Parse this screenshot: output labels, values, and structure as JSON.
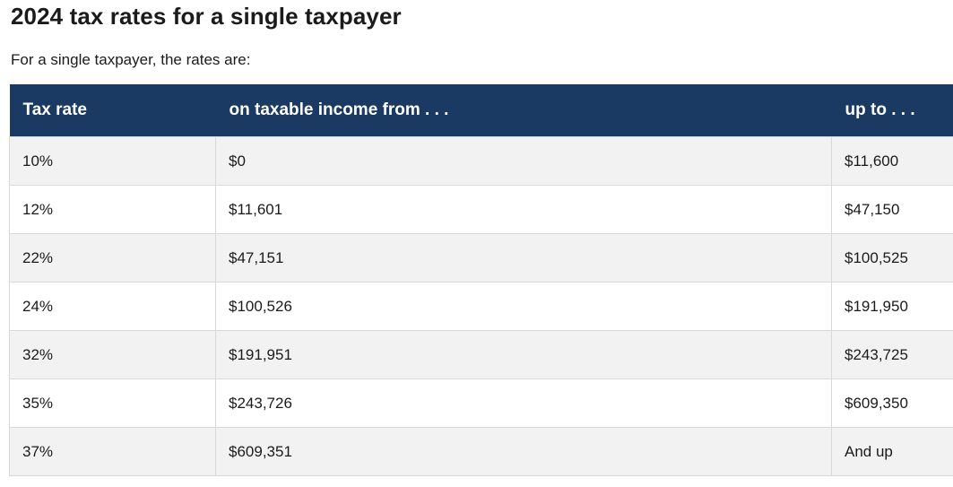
{
  "page": {
    "title": "2024 tax rates for a single taxpayer",
    "subtitle": "For a single taxpayer, the rates are:"
  },
  "table": {
    "columns": [
      "Tax rate",
      "on taxable income from . . .",
      "up to . . ."
    ],
    "rows": [
      {
        "rate": "10%",
        "from": "$0",
        "upto": "$11,600"
      },
      {
        "rate": "12%",
        "from": "$11,601",
        "upto": "$47,150"
      },
      {
        "rate": "22%",
        "from": "$47,151",
        "upto": "$100,525"
      },
      {
        "rate": "24%",
        "from": "$100,526",
        "upto": "$191,950"
      },
      {
        "rate": "32%",
        "from": "$191,951",
        "upto": "$243,725"
      },
      {
        "rate": "35%",
        "from": "$243,726",
        "upto": "$609,350"
      },
      {
        "rate": "37%",
        "from": "$609,351",
        "upto": "And up"
      }
    ]
  },
  "colors": {
    "header_bg": "#1b3a63",
    "header_text": "#ffffff",
    "row_alt_bg": "#f2f2f2",
    "row_bg": "#ffffff",
    "border": "#d9d9d9",
    "text": "#1b1b1b"
  }
}
